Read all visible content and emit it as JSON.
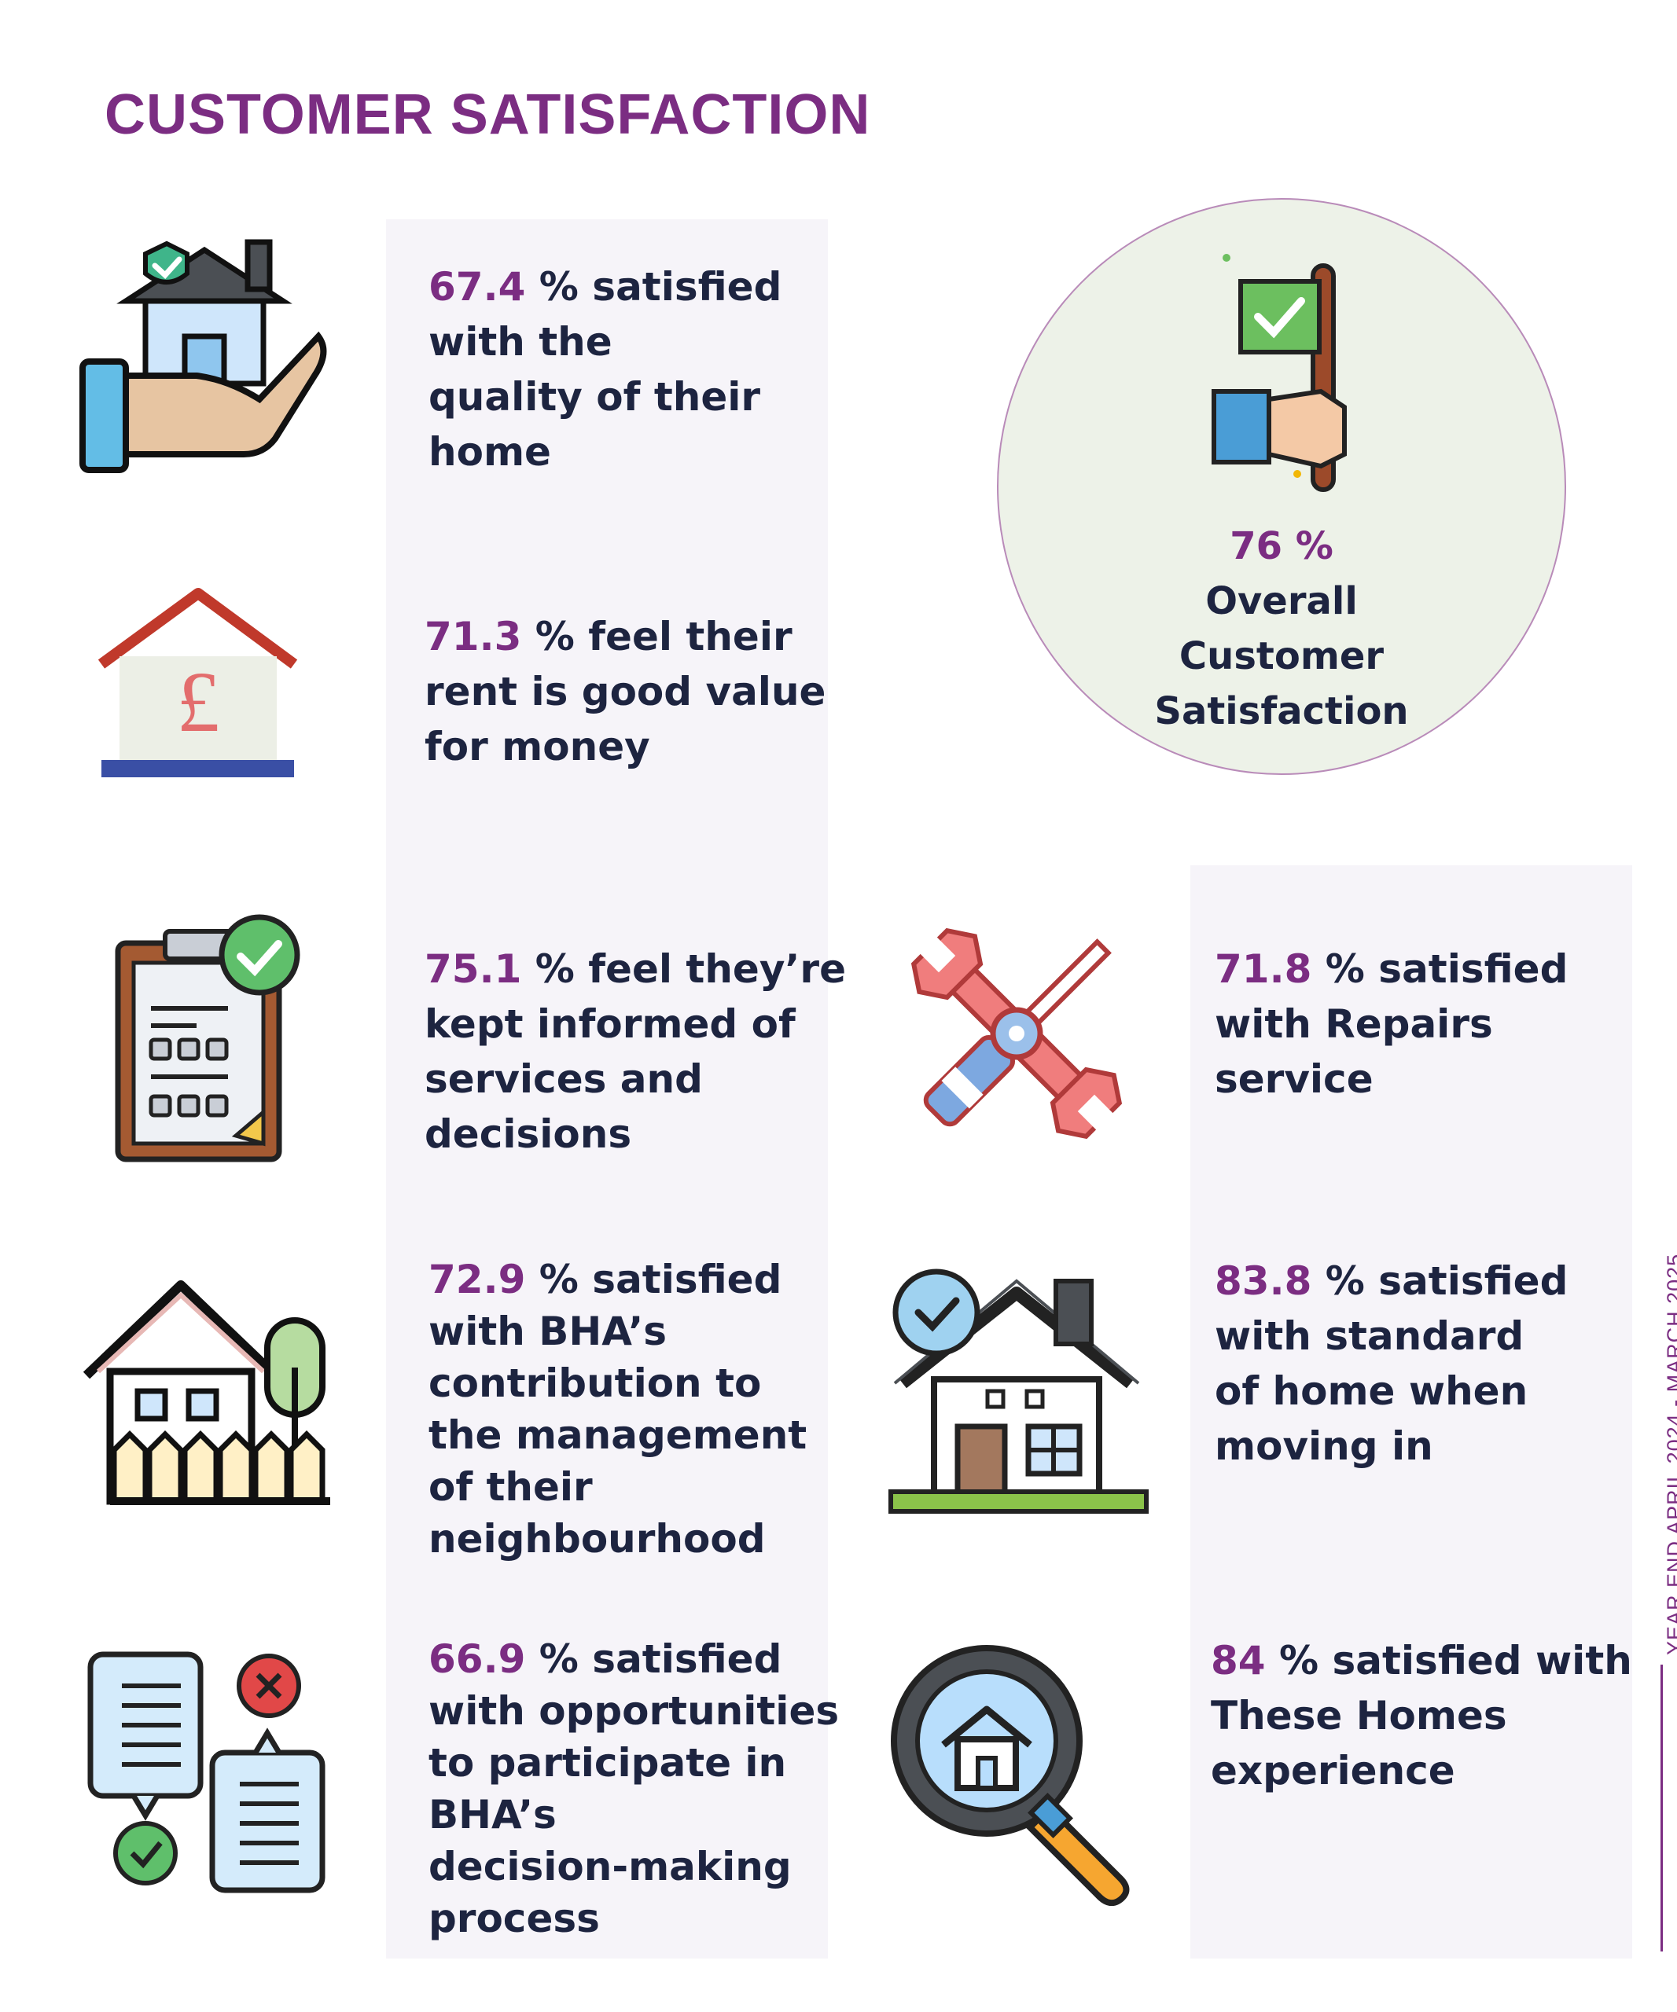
{
  "title": "CUSTOMER SATISFACTION",
  "side_label": "YEAR END APRIL 2024 - MARCH 2025",
  "overall": {
    "value": "76 %",
    "lines": [
      "Overall",
      "Customer",
      "Satisfaction"
    ]
  },
  "stats": {
    "quality_home": {
      "value": "67.4",
      "lines": [
        "% satisfied",
        "with the",
        "quality of their",
        "home"
      ]
    },
    "rent_value": {
      "value": "71.3",
      "lines": [
        "% feel their",
        "rent is good value",
        "for money"
      ]
    },
    "kept_informed": {
      "value": "75.1",
      "lines": [
        "% feel they’re",
        "kept informed of",
        "services and",
        "decisions"
      ]
    },
    "neighbourhood": {
      "value": "72.9",
      "lines": [
        "% satisfied",
        "with BHA’s",
        "contribution to",
        "the management",
        "of their",
        "neighbourhood"
      ]
    },
    "participate": {
      "value": "66.9",
      "lines": [
        "% satisfied",
        "with opportunities",
        "to participate in",
        "BHA’s",
        "decision-making",
        "process"
      ]
    },
    "repairs": {
      "value": "71.8",
      "lines": [
        "% satisfied",
        "with Repairs",
        "service"
      ]
    },
    "moving_in": {
      "value": "83.8",
      "lines": [
        "% satisfied",
        "with standard",
        "of home when",
        "moving in"
      ]
    },
    "these_homes": {
      "value": "84",
      "lines": [
        "% satisfied with",
        "These Homes",
        "experience"
      ]
    }
  },
  "icons": {
    "quality_home": "house-in-hand-icon",
    "rent_value": "pound-house-icon",
    "kept_informed": "clipboard-checklist-icon",
    "neighbourhood": "house-fence-tree-icon",
    "participate": "chat-feedback-icon",
    "overall": "hand-flag-check-icon",
    "repairs": "wrench-screwdriver-icon",
    "moving_in": "verified-house-icon",
    "these_homes": "magnifier-house-icon"
  },
  "colors": {
    "accent": "#7b2d82",
    "text": "#1d2440",
    "panel": "#f6f4f9",
    "circle": "#edf2e8"
  }
}
